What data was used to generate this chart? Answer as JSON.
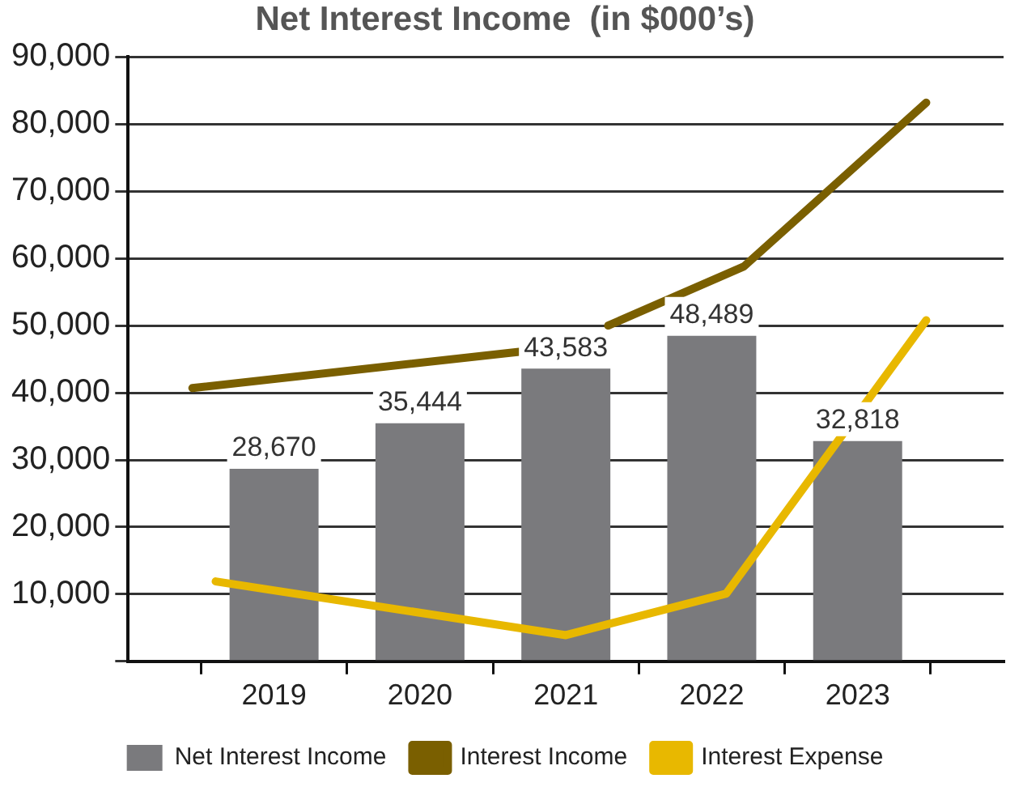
{
  "chart_data": {
    "type": "bar",
    "title": "Net Interest Income  (in $000’s)",
    "x": [
      2019,
      2020,
      2021,
      2022,
      2023
    ],
    "xlim": [
      2018,
      2024
    ],
    "xticks": [
      {
        "value": 2018,
        "label": null
      },
      2019,
      2020,
      2021,
      2022,
      2023
    ],
    "ylim": [
      0,
      90000
    ],
    "yticks": [
      {
        "value": 0,
        "label": null
      },
      {
        "value": 10000,
        "label": "10,000"
      },
      {
        "value": 20000,
        "label": "20,000"
      },
      {
        "value": 30000,
        "label": "30,000"
      },
      {
        "value": 40000,
        "label": "40,000"
      },
      {
        "value": 50000,
        "label": "50,000"
      },
      {
        "value": 60000,
        "label": "60,000"
      },
      {
        "value": 70000,
        "label": "70,000"
      },
      {
        "value": 80000,
        "label": "80,000"
      },
      {
        "value": 90000,
        "label": "90,000"
      }
    ],
    "series": [
      {
        "name": "Net Interest Income",
        "color": "#7a7a7d",
        "values": [
          28670,
          35444,
          43583,
          48489,
          32818
        ],
        "value_labels": [
          "28,670",
          "35,444",
          "43,583",
          "48,489",
          "32,818"
        ]
      },
      {
        "name": "Interest Income",
        "type": "line",
        "color": "#7a5f00",
        "x": [
          2018.44,
          2020.68,
          2021,
          2021.29,
          2022.22,
          2023.47
        ],
        "values": [
          40700,
          46100,
          null,
          50000,
          58800,
          83200
        ]
      },
      {
        "name": "Interest Expense",
        "type": "line",
        "color": "#e8b800",
        "x": [
          2018.6,
          2021,
          2022.1,
          2023.47
        ],
        "values": [
          11900,
          3900,
          10100,
          50800
        ]
      }
    ],
    "grid": "y",
    "legend": "bottom",
    "marker": "none",
    "line_style": "solid"
  }
}
